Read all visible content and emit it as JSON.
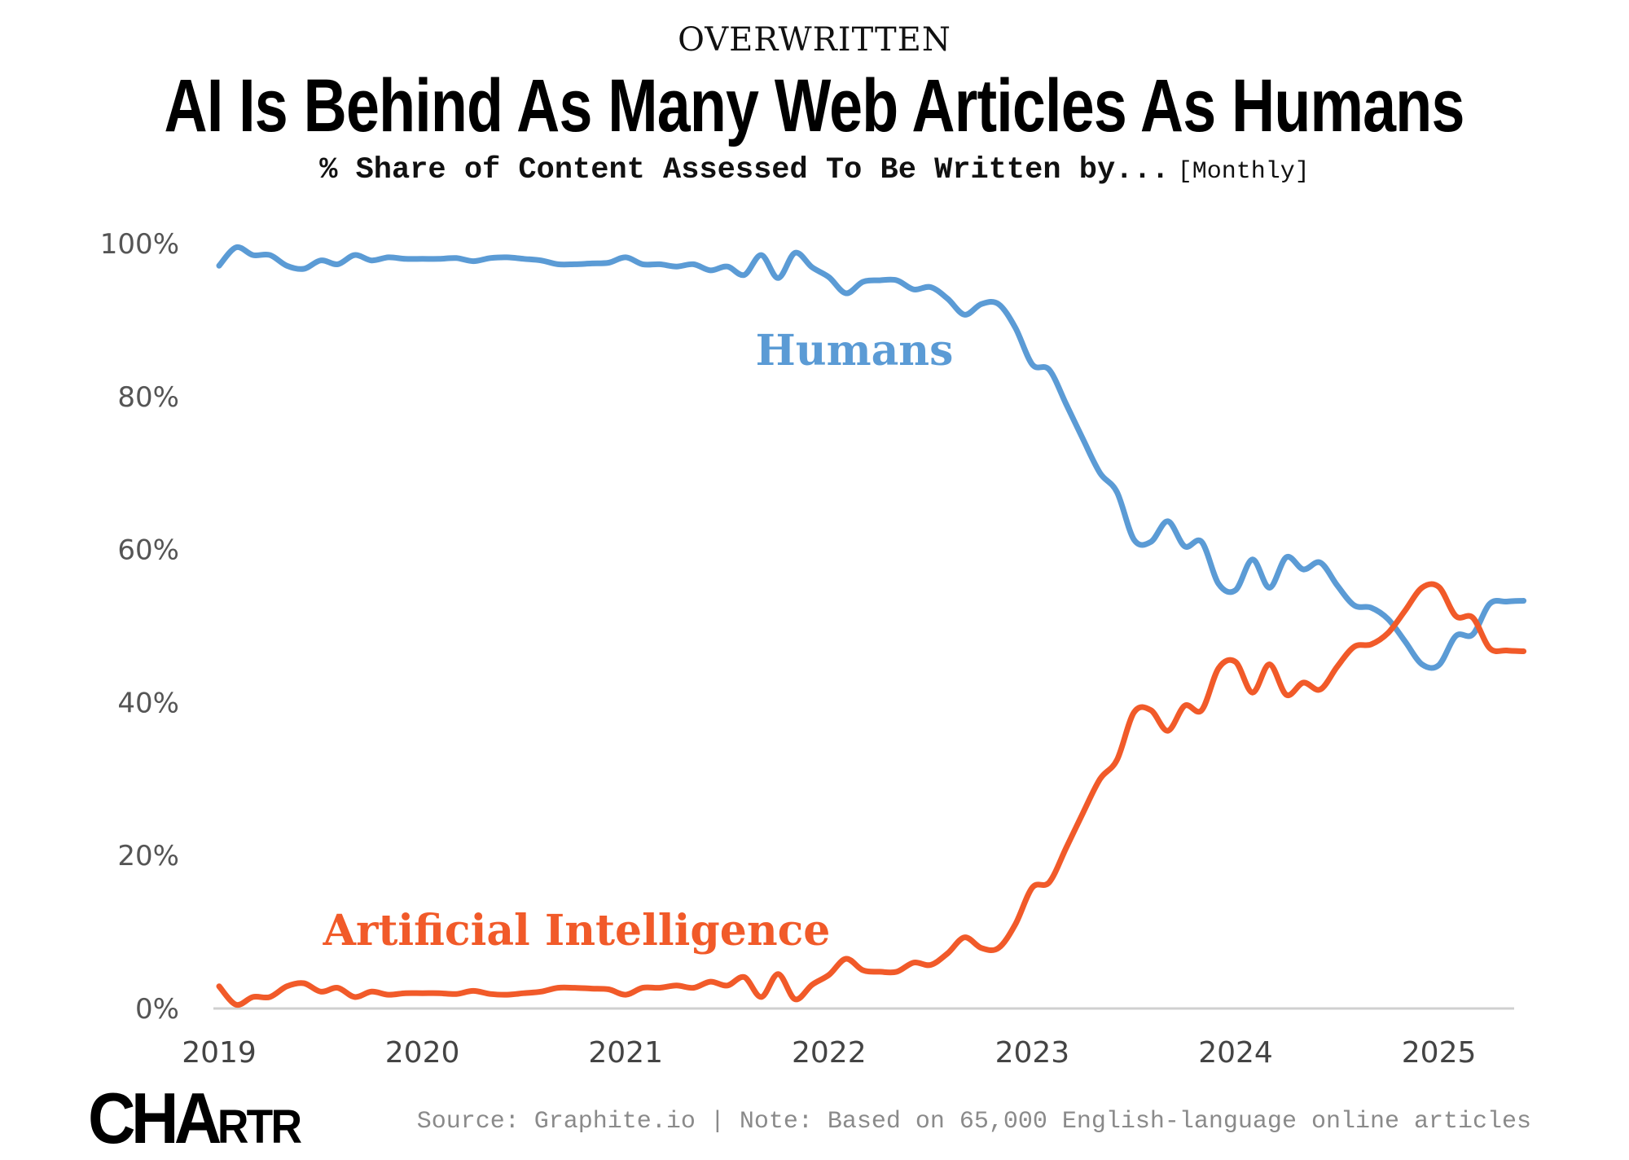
{
  "header": {
    "kicker": "OVERWRITTEN",
    "title": "AI Is Behind As Many Web Articles As Humans",
    "subtitle": "% Share of Content Assessed To Be Written by...",
    "frequency": "[Monthly]"
  },
  "footer": {
    "logo_text": "CHARTR",
    "logo_main": "CHA",
    "logo_small": "RTR",
    "source": "Source: Graphite.io | Note: Based on 65,000 English-language online articles"
  },
  "colors": {
    "humans": "#5b9bd5",
    "ai": "#f15a29",
    "axis": "#d0d0d0"
  },
  "chart_data": {
    "type": "line",
    "title": "AI Is Behind As Many Web Articles As Humans",
    "subtitle": "% Share of Content Assessed To Be Written by... [Monthly]",
    "xlabel": "",
    "ylabel": "",
    "ylim": [
      0,
      100
    ],
    "xlim": [
      "2019-01",
      "2025-06"
    ],
    "grid": false,
    "legend": "inline labels",
    "y_ticks": [
      "0%",
      "20%",
      "40%",
      "60%",
      "80%",
      "100%"
    ],
    "y_tick_values": [
      0,
      20,
      40,
      60,
      80,
      100
    ],
    "x_ticks": [
      "2019",
      "2020",
      "2021",
      "2022",
      "2023",
      "2024",
      "2025"
    ],
    "x": [
      "2019-01",
      "2019-02",
      "2019-03",
      "2019-04",
      "2019-05",
      "2019-06",
      "2019-07",
      "2019-08",
      "2019-09",
      "2019-10",
      "2019-11",
      "2019-12",
      "2020-01",
      "2020-02",
      "2020-03",
      "2020-04",
      "2020-05",
      "2020-06",
      "2020-07",
      "2020-08",
      "2020-09",
      "2020-10",
      "2020-11",
      "2020-12",
      "2021-01",
      "2021-02",
      "2021-03",
      "2021-04",
      "2021-05",
      "2021-06",
      "2021-07",
      "2021-08",
      "2021-09",
      "2021-10",
      "2021-11",
      "2021-12",
      "2022-01",
      "2022-02",
      "2022-03",
      "2022-04",
      "2022-05",
      "2022-06",
      "2022-07",
      "2022-08",
      "2022-09",
      "2022-10",
      "2022-11",
      "2022-12",
      "2023-01",
      "2023-02",
      "2023-03",
      "2023-04",
      "2023-05",
      "2023-06",
      "2023-07",
      "2023-08",
      "2023-09",
      "2023-10",
      "2023-11",
      "2023-12",
      "2024-01",
      "2024-02",
      "2024-03",
      "2024-04",
      "2024-05",
      "2024-06",
      "2024-07",
      "2024-08",
      "2024-09",
      "2024-10",
      "2024-11",
      "2024-12",
      "2025-01",
      "2025-02",
      "2025-03",
      "2025-04",
      "2025-05",
      "2025-06"
    ],
    "series": [
      {
        "name": "Humans",
        "color": "#5b9bd5",
        "values": [
          97.1,
          99.5,
          98.5,
          98.5,
          97.1,
          96.7,
          97.8,
          97.3,
          98.5,
          97.8,
          98.2,
          98.0,
          98.0,
          98.0,
          98.1,
          97.7,
          98.1,
          98.2,
          98.0,
          97.8,
          97.3,
          97.3,
          97.4,
          97.5,
          98.2,
          97.3,
          97.3,
          97.0,
          97.3,
          96.5,
          97.0,
          95.9,
          98.5,
          95.5,
          98.8,
          96.9,
          95.6,
          93.5,
          95.0,
          95.2,
          95.2,
          94.0,
          94.3,
          92.8,
          90.7,
          92.1,
          92.1,
          89.0,
          84.2,
          83.5,
          79.0,
          74.4,
          70.0,
          67.5,
          61.3,
          61.0,
          63.7,
          60.4,
          61.0,
          55.5,
          54.7,
          58.7,
          55.0,
          59.0,
          57.4,
          58.3,
          55.3,
          52.7,
          52.4,
          50.9,
          48.0,
          45.0,
          44.9,
          48.7,
          48.9,
          52.9,
          53.2,
          53.3
        ]
      },
      {
        "name": "Artificial Intelligence",
        "color": "#f15a29",
        "values": [
          2.9,
          0.5,
          1.5,
          1.5,
          2.9,
          3.3,
          2.2,
          2.7,
          1.5,
          2.2,
          1.8,
          2.0,
          2.0,
          2.0,
          1.9,
          2.3,
          1.9,
          1.8,
          2.0,
          2.2,
          2.7,
          2.7,
          2.6,
          2.5,
          1.8,
          2.7,
          2.7,
          3.0,
          2.7,
          3.5,
          3.0,
          4.1,
          1.5,
          4.5,
          1.2,
          3.1,
          4.4,
          6.5,
          5.0,
          4.8,
          4.8,
          6.0,
          5.7,
          7.2,
          9.3,
          7.9,
          7.9,
          11.0,
          15.8,
          16.5,
          21.0,
          25.6,
          30.0,
          32.5,
          38.7,
          39.0,
          36.3,
          39.6,
          39.0,
          44.5,
          45.3,
          41.3,
          45.0,
          41.0,
          42.6,
          41.7,
          44.7,
          47.3,
          47.6,
          49.1,
          52.0,
          55.0,
          55.1,
          51.3,
          51.1,
          47.1,
          46.8,
          46.7
        ]
      }
    ],
    "annotations": [
      "Humans",
      "Artificial Intelligence"
    ]
  }
}
